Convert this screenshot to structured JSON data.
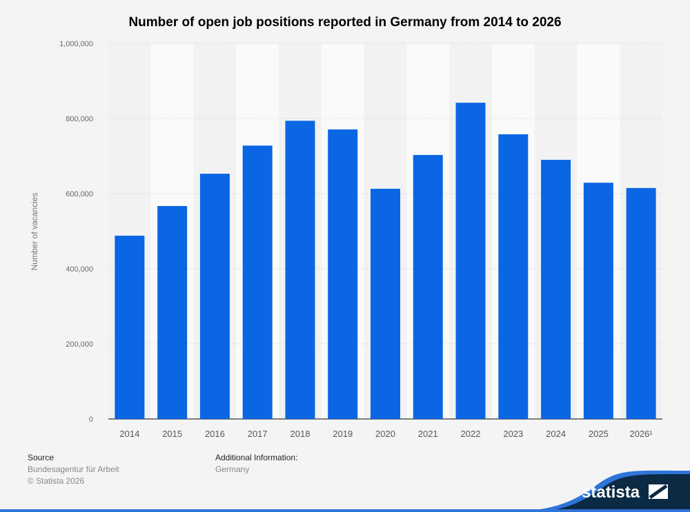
{
  "chart_data": {
    "type": "bar",
    "title": "Number of open job positions reported in Germany from 2014 to 2026",
    "xlabel": "",
    "ylabel": "Number of vacancies",
    "categories": [
      "2014",
      "2015",
      "2016",
      "2017",
      "2018",
      "2019",
      "2020",
      "2021",
      "2022",
      "2023",
      "2024",
      "2025",
      "2026¹"
    ],
    "values": [
      488000,
      567000,
      653000,
      728000,
      794000,
      771000,
      613000,
      703000,
      842000,
      758000,
      690000,
      629000,
      615000
    ],
    "ylim": [
      0,
      1000000
    ],
    "yticks": [
      0,
      200000,
      400000,
      600000,
      800000,
      1000000
    ],
    "ytick_labels": [
      "0",
      "200,000",
      "400,000",
      "600,000",
      "800,000",
      "1,000,000"
    ],
    "grid": true,
    "bar_color": "#0b66e4"
  },
  "footer": {
    "source_label": "Source",
    "source": "Bundesagentur für Arbeit",
    "copyright": "© Statista 2026",
    "additional_label": "Additional Information:",
    "additional": "Germany",
    "logo_text": "statista"
  }
}
